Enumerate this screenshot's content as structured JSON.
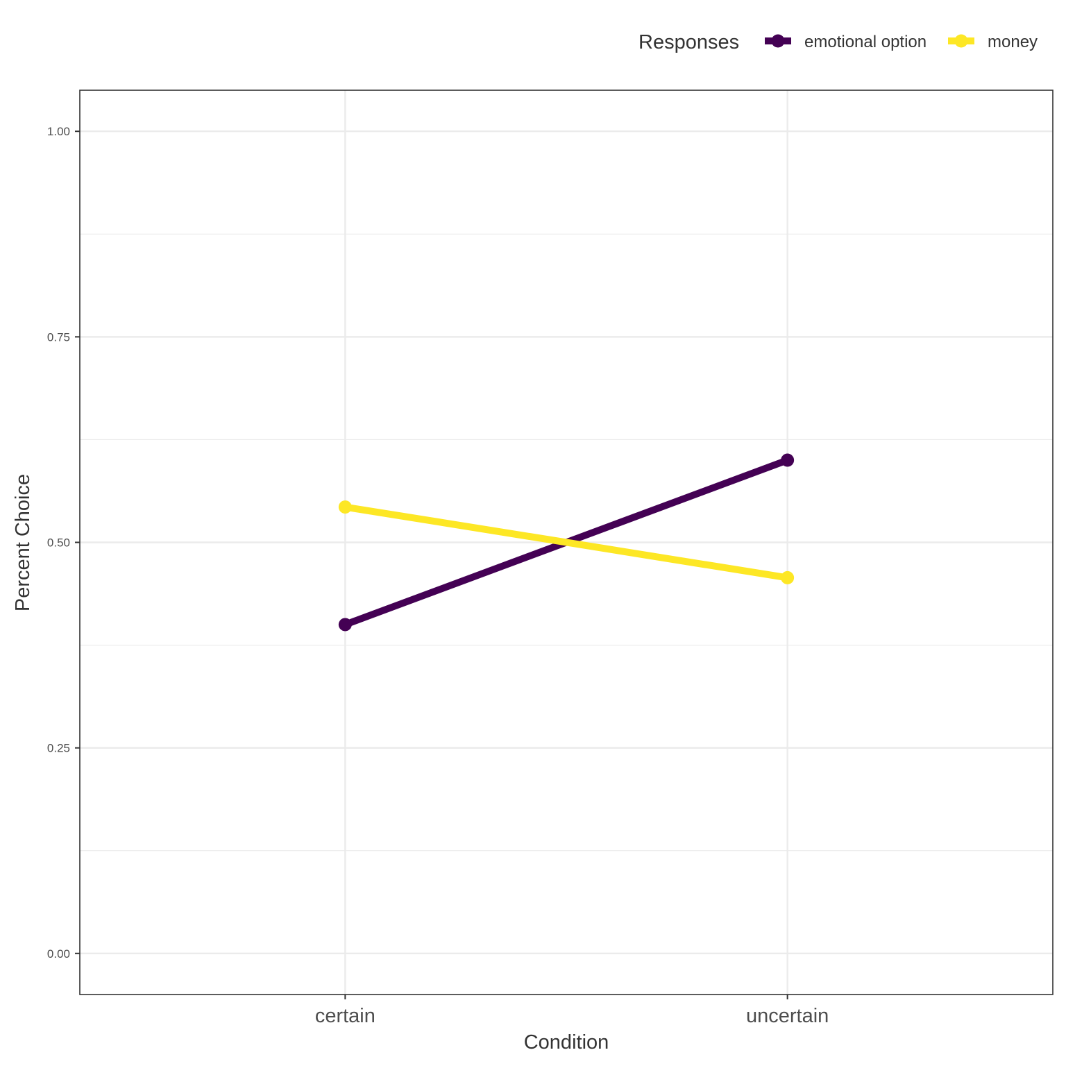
{
  "chart_data": {
    "type": "line",
    "title": "",
    "xlabel": "Condition",
    "ylabel": "Percent Choice",
    "categories": [
      "certain",
      "uncertain"
    ],
    "ylim": [
      -0.05,
      1.05
    ],
    "yticks": [
      0.0,
      0.25,
      0.5,
      0.75,
      1.0
    ],
    "ytick_labels": [
      "0.00",
      "0.25",
      "0.50",
      "0.75",
      "1.00"
    ],
    "grid": true,
    "legend": {
      "title": "Responses",
      "placement": "top"
    },
    "series": [
      {
        "name": "emotional option",
        "color": "#440154",
        "values": [
          0.4,
          0.6
        ]
      },
      {
        "name": "money",
        "color": "#FDE725",
        "values": [
          0.543,
          0.457
        ]
      }
    ]
  }
}
